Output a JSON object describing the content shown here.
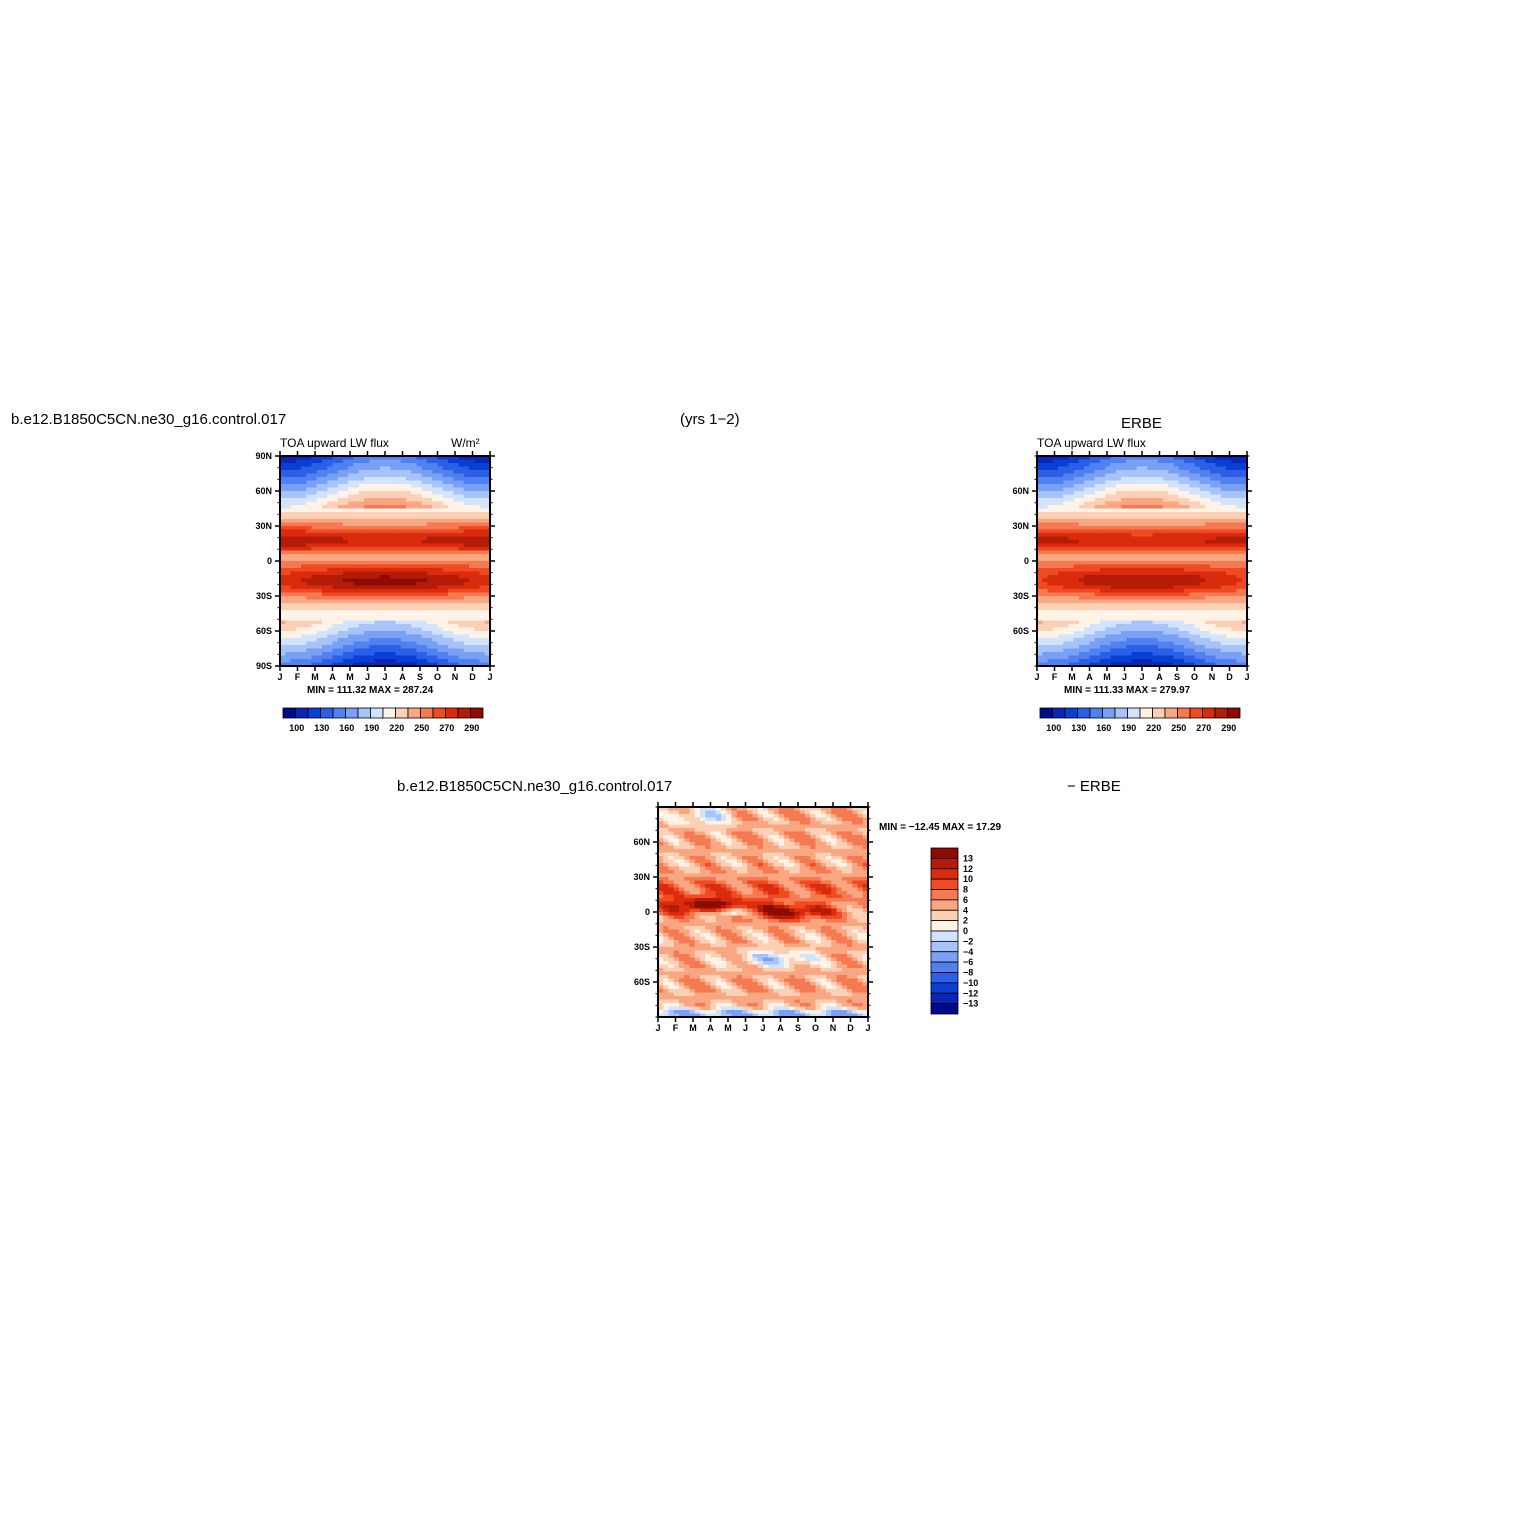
{
  "header": {
    "case_name_left": "b.e12.B1850C5CN.ne30_g16.control.017",
    "years": "(yrs 1−2)",
    "obs_title": "ERBE",
    "diff_case": "b.e12.B1850C5CN.ne30_g16.control.017",
    "diff_obs": "− ERBE"
  },
  "chart_data": [
    {
      "type": "heatmap",
      "id": "model",
      "title": "TOA upward LW flux",
      "units": "W/m²",
      "stats": "MIN =  111.32  MAX =  287.24",
      "x_ticks": [
        "J",
        "F",
        "M",
        "A",
        "M",
        "J",
        "J",
        "A",
        "S",
        "O",
        "N",
        "D",
        "J"
      ],
      "y_ticks": [
        "90N",
        "60N",
        "30N",
        "0",
        "30S",
        "60S",
        "90S"
      ],
      "y_values": [
        90,
        60,
        30,
        0,
        -30,
        -60,
        -90
      ],
      "ylim": [
        -90,
        90
      ],
      "legend_labels": [
        "100",
        "130",
        "160",
        "190",
        "220",
        "250",
        "270",
        "290"
      ],
      "legend_colors": [
        "#000b8c",
        "#0a25b8",
        "#0a3fd4",
        "#2b5fe6",
        "#4f82f0",
        "#7aa0f5",
        "#a6c3fa",
        "#d2e4fc",
        "#fff2e6",
        "#fcd0b5",
        "#f9a682",
        "#f57a52",
        "#f04a23",
        "#da2b0c",
        "#b51c08",
        "#8c0b04"
      ],
      "cmin": 100,
      "cmax": 300
    },
    {
      "type": "heatmap",
      "id": "obs",
      "title": "TOA upward LW flux",
      "stats": "MIN =  111.33  MAX =  279.97",
      "x_ticks": [
        "J",
        "F",
        "M",
        "A",
        "M",
        "J",
        "J",
        "A",
        "S",
        "O",
        "N",
        "D",
        "J"
      ],
      "y_ticks": [
        "60N",
        "30N",
        "0",
        "30S",
        "60S"
      ],
      "y_values": [
        60,
        30,
        0,
        -30,
        -60
      ],
      "ylim": [
        -90,
        90
      ],
      "legend_labels": [
        "100",
        "130",
        "160",
        "190",
        "220",
        "250",
        "270",
        "290"
      ],
      "legend_colors": [
        "#000b8c",
        "#0a25b8",
        "#0a3fd4",
        "#2b5fe6",
        "#4f82f0",
        "#7aa0f5",
        "#a6c3fa",
        "#d2e4fc",
        "#fff2e6",
        "#fcd0b5",
        "#f9a682",
        "#f57a52",
        "#f04a23",
        "#da2b0c",
        "#b51c08",
        "#8c0b04"
      ],
      "cmin": 100,
      "cmax": 300
    },
    {
      "type": "heatmap",
      "id": "diff",
      "stats": "MIN =  −12.45  MAX =   17.29",
      "x_ticks": [
        "J",
        "F",
        "M",
        "A",
        "M",
        "J",
        "J",
        "A",
        "S",
        "O",
        "N",
        "D",
        "J"
      ],
      "y_ticks": [
        "60N",
        "30N",
        "0",
        "30S",
        "60S"
      ],
      "y_values": [
        60,
        30,
        0,
        -30,
        -60
      ],
      "ylim": [
        -90,
        90
      ],
      "legend_labels": [
        "13",
        "12",
        "10",
        "8",
        "6",
        "4",
        "2",
        "0",
        "−2",
        "−4",
        "−6",
        "−8",
        "−10",
        "−12",
        "−13"
      ],
      "legend_colors": [
        "#8c0b04",
        "#b51c08",
        "#da2b0c",
        "#f04a23",
        "#f57a52",
        "#f9a682",
        "#fcd0b5",
        "#fff2e6",
        "#d2e4fc",
        "#a6c3fa",
        "#7aa0f5",
        "#4f82f0",
        "#2b5fe6",
        "#0a3fd4",
        "#0a25b8",
        "#000b8c"
      ],
      "cmin": -14,
      "cmax": 14
    }
  ]
}
